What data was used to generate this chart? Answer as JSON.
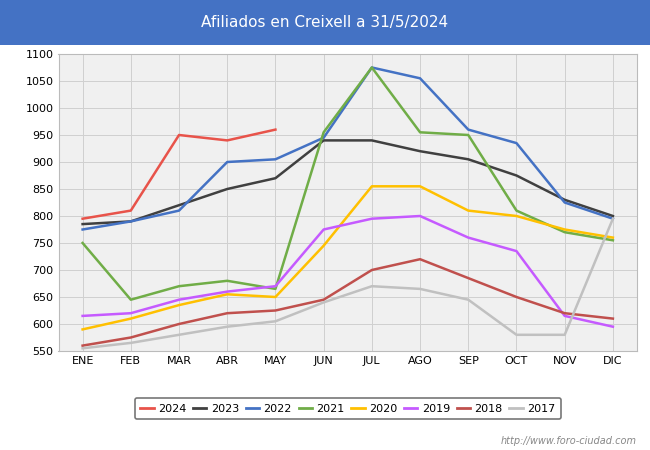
{
  "title": "Afiliados en Creixell a 31/5/2024",
  "title_bg_color": "#4472c4",
  "title_text_color": "white",
  "ylim": [
    550,
    1100
  ],
  "yticks": [
    550,
    600,
    650,
    700,
    750,
    800,
    850,
    900,
    950,
    1000,
    1050,
    1100
  ],
  "months": [
    "ENE",
    "FEB",
    "MAR",
    "ABR",
    "MAY",
    "JUN",
    "JUL",
    "AGO",
    "SEP",
    "OCT",
    "NOV",
    "DIC"
  ],
  "watermark": "http://www.foro-ciudad.com",
  "series": {
    "2024": {
      "color": "#e8534a",
      "data": [
        795,
        810,
        950,
        940,
        960,
        null,
        null,
        null,
        null,
        null,
        null,
        null
      ]
    },
    "2023": {
      "color": "#404040",
      "data": [
        785,
        790,
        820,
        850,
        870,
        940,
        940,
        920,
        905,
        875,
        830,
        800
      ]
    },
    "2022": {
      "color": "#4472c4",
      "data": [
        775,
        790,
        810,
        900,
        905,
        945,
        1075,
        1055,
        960,
        935,
        825,
        795
      ]
    },
    "2021": {
      "color": "#70ad47",
      "data": [
        750,
        645,
        670,
        680,
        665,
        955,
        1075,
        955,
        950,
        810,
        770,
        755
      ]
    },
    "2020": {
      "color": "#ffc000",
      "data": [
        590,
        610,
        635,
        655,
        650,
        745,
        855,
        855,
        810,
        800,
        775,
        760
      ]
    },
    "2019": {
      "color": "#c55aff",
      "data": [
        615,
        620,
        645,
        660,
        670,
        775,
        795,
        800,
        760,
        735,
        615,
        595
      ]
    },
    "2018": {
      "color": "#c0504d",
      "data": [
        560,
        575,
        600,
        620,
        625,
        645,
        700,
        720,
        685,
        650,
        620,
        610
      ]
    },
    "2017": {
      "color": "#c0c0c0",
      "data": [
        555,
        565,
        580,
        595,
        605,
        640,
        670,
        665,
        645,
        580,
        580,
        795
      ]
    }
  },
  "grid_color": "#d0d0d0",
  "plot_bg_color": "#f0f0f0",
  "fig_bg_color": "#ffffff",
  "legend_edge_color": "#555555"
}
